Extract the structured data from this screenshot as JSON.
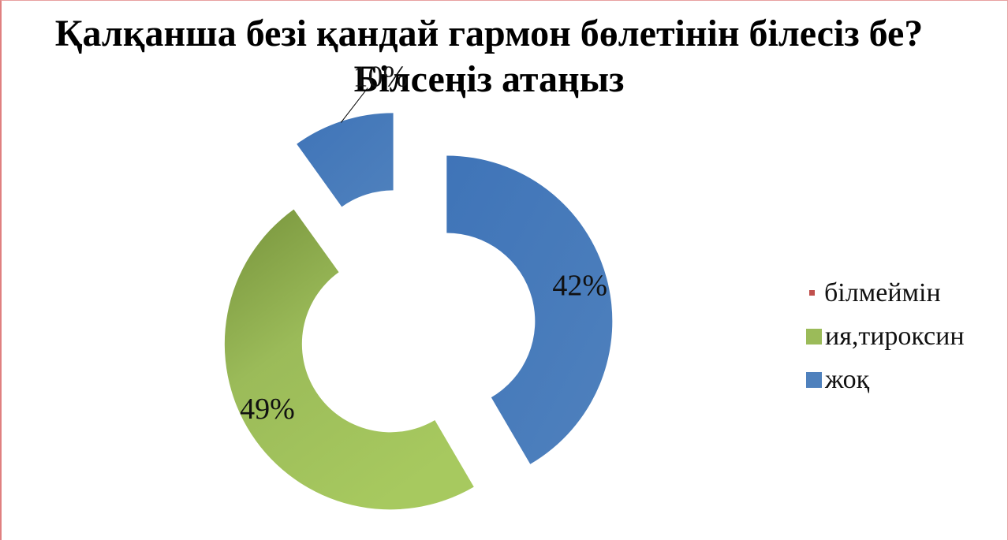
{
  "chart_data": {
    "type": "pie",
    "subtype": "exploded-doughnut",
    "title": "Қалқанша безі қандай гармон бөлетінін білесіз бе? Білсеңіз атаңыз",
    "categories": [
      "білмеймін",
      "ия,тироксин",
      "жоқ"
    ],
    "values": [
      0,
      49,
      10
    ],
    "data_labels": [
      "",
      "49%",
      "10%"
    ],
    "colors": [
      "#c0504d",
      "#9bbb59",
      "#4f81bd"
    ],
    "extra_slice": {
      "value": 42,
      "label": "42%",
      "color": "#4f81bd"
    },
    "legend": {
      "position": "right",
      "items": [
        {
          "label": "білмеймін",
          "color": "#c0504d"
        },
        {
          "label": "ия,тироксин",
          "color": "#9bbb59"
        },
        {
          "label": "жоқ",
          "color": "#4f81bd"
        }
      ]
    }
  }
}
